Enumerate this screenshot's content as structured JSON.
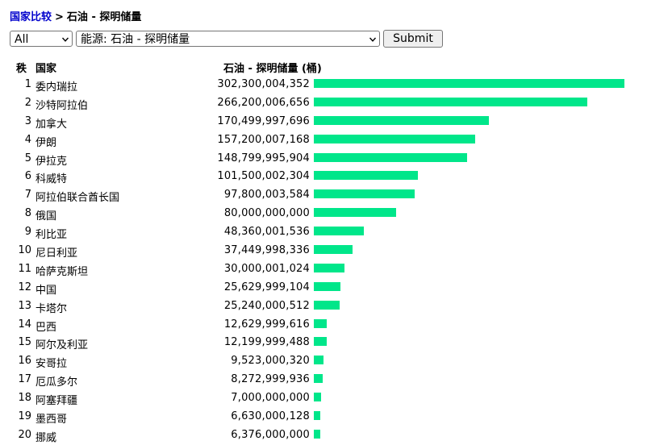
{
  "breadcrumb": {
    "link": "国家比较",
    "separator": ">",
    "current": "石油 - 探明储量"
  },
  "controls": {
    "region_select": "All",
    "metric_select": "能源: 石油 - 探明储量",
    "submit_label": "Submit"
  },
  "table": {
    "headers": {
      "rank": "秩",
      "country": "国家",
      "value": "石油 - 探明储量 (桶)"
    },
    "max_value": 302300004352,
    "bar_color": "#00e68a",
    "rows": [
      {
        "rank": "1",
        "country": "委内瑞拉",
        "value": "302,300,004,352",
        "amount": 302300004352
      },
      {
        "rank": "2",
        "country": "沙特阿拉伯",
        "value": "266,200,006,656",
        "amount": 266200006656
      },
      {
        "rank": "3",
        "country": "加拿大",
        "value": "170,499,997,696",
        "amount": 170499997696
      },
      {
        "rank": "4",
        "country": "伊朗",
        "value": "157,200,007,168",
        "amount": 157200007168
      },
      {
        "rank": "5",
        "country": "伊拉克",
        "value": "148,799,995,904",
        "amount": 148799995904
      },
      {
        "rank": "6",
        "country": "科威特",
        "value": "101,500,002,304",
        "amount": 101500002304
      },
      {
        "rank": "7",
        "country": "阿拉伯联合酋长国",
        "value": "97,800,003,584",
        "amount": 97800003584
      },
      {
        "rank": "8",
        "country": "俄国",
        "value": "80,000,000,000",
        "amount": 80000000000
      },
      {
        "rank": "9",
        "country": "利比亚",
        "value": "48,360,001,536",
        "amount": 48360001536
      },
      {
        "rank": "10",
        "country": "尼日利亚",
        "value": "37,449,998,336",
        "amount": 37449998336
      },
      {
        "rank": "11",
        "country": "哈萨克斯坦",
        "value": "30,000,001,024",
        "amount": 30000001024
      },
      {
        "rank": "12",
        "country": "中国",
        "value": "25,629,999,104",
        "amount": 25629999104
      },
      {
        "rank": "13",
        "country": "卡塔尔",
        "value": "25,240,000,512",
        "amount": 25240000512
      },
      {
        "rank": "14",
        "country": "巴西",
        "value": "12,629,999,616",
        "amount": 12629999616
      },
      {
        "rank": "15",
        "country": "阿尔及利亚",
        "value": "12,199,999,488",
        "amount": 12199999488
      },
      {
        "rank": "16",
        "country": "安哥拉",
        "value": "9,523,000,320",
        "amount": 9523000320
      },
      {
        "rank": "17",
        "country": "厄瓜多尔",
        "value": "8,272,999,936",
        "amount": 8272999936
      },
      {
        "rank": "18",
        "country": "阿塞拜疆",
        "value": "7,000,000,000",
        "amount": 7000000000
      },
      {
        "rank": "19",
        "country": "墨西哥",
        "value": "6,630,000,128",
        "amount": 6630000128
      },
      {
        "rank": "20",
        "country": "挪威",
        "value": "6,376,000,000",
        "amount": 6376000000
      }
    ]
  }
}
